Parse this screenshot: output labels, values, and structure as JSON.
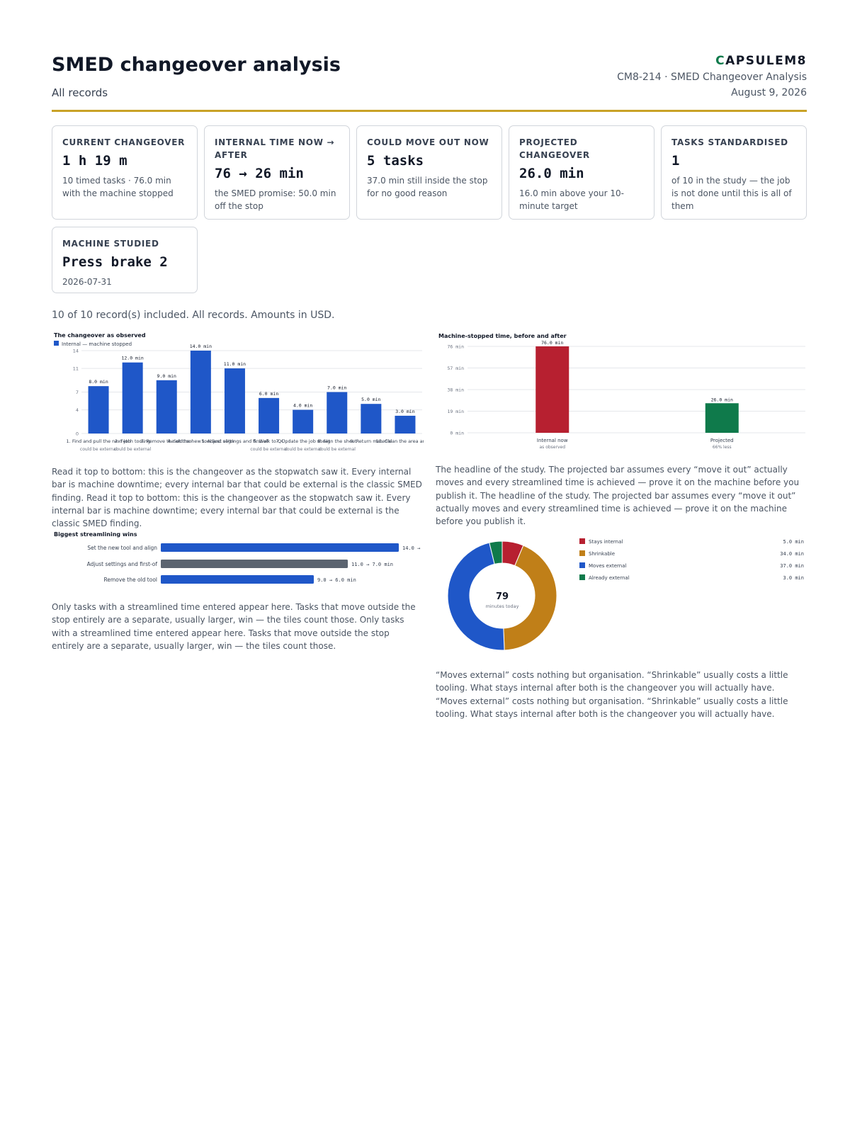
{
  "header": {
    "title": "SMED changeover analysis",
    "subtitle": "All records",
    "brand_c": "C",
    "brand_rest": "APSULEM8",
    "doc_id": "CM8-214 · SMED Changeover Analysis",
    "date": "August 9, 2026"
  },
  "tiles": [
    {
      "label": "Current changeover",
      "value": "1 h 19 m",
      "note": "10 timed tasks · 76.0 min with the machine stopped"
    },
    {
      "label": "Internal time now → after",
      "value": "76 → 26 min",
      "note": "the SMED promise: 50.0 min off the stop"
    },
    {
      "label": "Could move out now",
      "value": "5 tasks",
      "note": "37.0 min still inside the stop for no good reason"
    },
    {
      "label": "Projected changeover",
      "value": "26.0 min",
      "note": "16.0 min above your 10-minute target"
    },
    {
      "label": "Tasks standardised",
      "value": "1",
      "note": "of 10 in the study — the job is not done until this is all of them"
    },
    {
      "label": "Machine studied",
      "value": "Press brake 2",
      "note": "2026-07-31"
    }
  ],
  "summary": "10 of 10 record(s) included. All records. Amounts in USD.",
  "colors": {
    "internal": "#1f57c8",
    "stays_internal": "#b72030",
    "shrinkable": "#c07f18",
    "moves_external": "#1f57c8",
    "already_external": "#0f7a4b",
    "projected": "#0f7a4b",
    "gray_bar": "#5b6470",
    "accent_rule": "#c9a227"
  },
  "chart_data": [
    {
      "type": "bar",
      "title": "The changeover as observed",
      "legend": [
        "Internal — machine stopped"
      ],
      "categories": [
        "1. Find and pull the next job",
        "2. Fetch tooling",
        "3. Remove the old tool",
        "4. Set the new tool and align",
        "5. Adjust settings and first-of",
        "6. Walk to QC",
        "7. Update the job sheet",
        "8. Sign the sheet",
        "9. Return material",
        "10. Clean the area and re"
      ],
      "sublabels": [
        "could be external",
        "could be external",
        "",
        "",
        "",
        "could be external",
        "could be external",
        "could be external",
        "",
        ""
      ],
      "values": [
        8.0,
        12.0,
        9.0,
        14.0,
        11.0,
        6.0,
        4.0,
        7.0,
        5.0,
        3.0
      ],
      "value_labels": [
        "8.0 min",
        "12.0 min",
        "9.0 min",
        "14.0 min",
        "11.0 min",
        "6.0 min",
        "4.0 min",
        "7.0 min",
        "5.0 min",
        "3.0 min"
      ],
      "yticks": [
        "0",
        "4",
        "7",
        "11",
        "14"
      ],
      "ylim": [
        0,
        14
      ]
    },
    {
      "type": "bar",
      "title": "Machine-stopped time, before and after",
      "categories": [
        "Internal now",
        "Projected"
      ],
      "sublabels": [
        "as observed",
        "66% less"
      ],
      "values": [
        76.0,
        26.0
      ],
      "value_labels": [
        "76.0 min",
        "26.0 min"
      ],
      "yticks": [
        "0 min",
        "19 min",
        "38 min",
        "57 min",
        "76 min"
      ],
      "ylim": [
        0,
        76
      ]
    },
    {
      "type": "bar",
      "orientation": "horizontal",
      "title": "Biggest streamlining wins",
      "categories": [
        "Set the new tool and align",
        "Adjust settings and first-of",
        "Remove the old tool"
      ],
      "values": [
        14.0,
        11.0,
        9.0
      ],
      "streamlined": [
        null,
        7.0,
        6.0
      ],
      "value_labels": [
        "14.0 →",
        "11.0 → 7.0 min",
        "9.0 → 6.0 min"
      ]
    },
    {
      "type": "pie",
      "center_value": "79",
      "center_label": "minutes today",
      "categories": [
        "Stays internal",
        "Shrinkable",
        "Moves external",
        "Already external"
      ],
      "values": [
        5.0,
        34.0,
        37.0,
        3.0
      ],
      "value_labels": [
        "5.0 min",
        "34.0 min",
        "37.0 min",
        "3.0 min"
      ]
    }
  ],
  "prose": {
    "observed": "Read it top to bottom: this is the changeover as the stopwatch saw it. Every internal bar is machine downtime; every internal bar that could be external is the classic SMED finding. Read it top to bottom: this is the changeover as the stopwatch saw it. Every internal bar is machine downtime; every internal bar that could be external is the classic SMED finding.",
    "before_after": "The headline of the study. The projected bar assumes every “move it out” actually moves and every streamlined time is achieved — prove it on the machine before you publish it. The headline of the study. The projected bar assumes every “move it out” actually moves and every streamlined time is achieved — prove it on the machine before you publish it.",
    "wins": "Only tasks with a streamlined time entered appear here. Tasks that move outside the stop entirely are a separate, usually larger, win — the tiles count those. Only tasks with a streamlined time entered appear here. Tasks that move outside the stop entirely are a separate, usually larger, win — the tiles count those.",
    "donut": "“Moves external” costs nothing but organisation. “Shrinkable” usually costs a little tooling. What stays internal after both is the changeover you will actually have. “Moves external” costs nothing but organisation. “Shrinkable” usually costs a little tooling. What stays internal after both is the changeover you will actually have."
  }
}
